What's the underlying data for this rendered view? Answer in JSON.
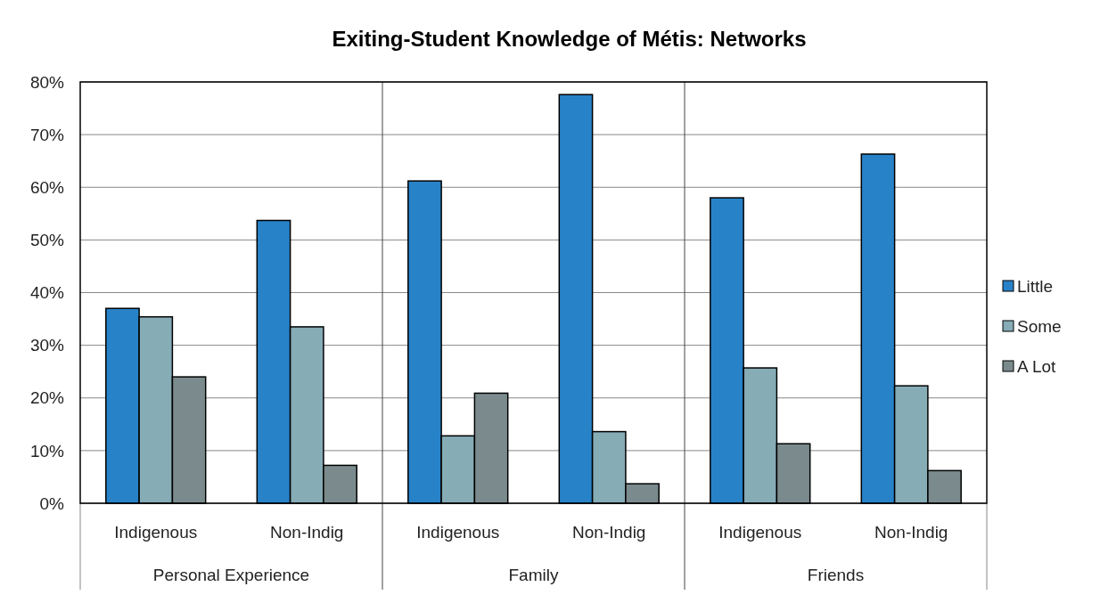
{
  "chart_data": {
    "type": "bar",
    "title": "Exiting-Student Knowledge of Métis: Networks",
    "categories": [
      "Indigenous",
      "Non-Indig",
      "Indigenous",
      "Non-Indig",
      "Indigenous",
      "Non-Indig"
    ],
    "series": [
      {
        "name": "Little",
        "color": "#2882c8",
        "values": [
          37.0,
          53.7,
          61.2,
          77.6,
          58.0,
          66.3
        ]
      },
      {
        "name": "Some",
        "color": "#86acb6",
        "values": [
          35.4,
          33.5,
          12.8,
          13.6,
          25.7,
          22.3
        ]
      },
      {
        "name": "A Lot",
        "color": "#7b8b8d",
        "values": [
          24.0,
          7.2,
          20.9,
          3.7,
          11.3,
          6.2
        ]
      }
    ],
    "ylim": [
      0,
      80
    ],
    "yticks": [
      {
        "value": 0,
        "label": "0%"
      },
      {
        "value": 10,
        "label": "10%"
      },
      {
        "value": 20,
        "label": "20%"
      },
      {
        "value": 30,
        "label": "30%"
      },
      {
        "value": 40,
        "label": "40%"
      },
      {
        "value": 50,
        "label": "50%"
      },
      {
        "value": 60,
        "label": "60%"
      },
      {
        "value": 70,
        "label": "70%"
      },
      {
        "value": 80,
        "label": "80%"
      }
    ],
    "grid": "y",
    "legend": "right",
    "annotations": [
      "Personal Experience",
      "Family",
      "Friends"
    ]
  }
}
